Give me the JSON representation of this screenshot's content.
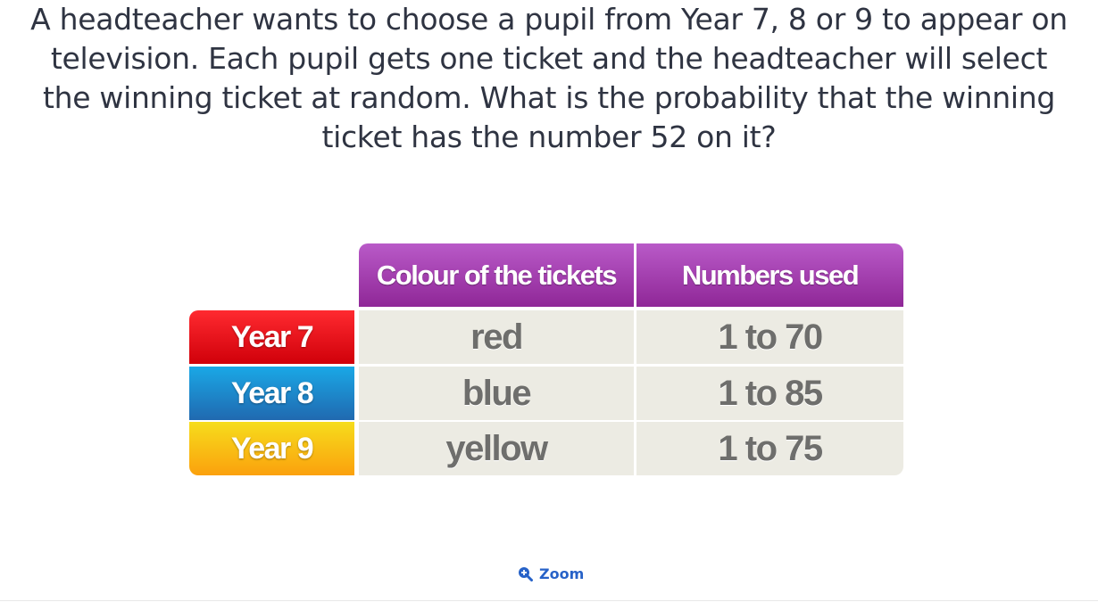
{
  "question": {
    "text": "A headteacher wants to choose a pupil from Year 7, 8 or 9 to appear on television. Each pupil gets one ticket and the headteacher will select the winning ticket at random. What is the probability that the winning ticket has the number 52 on it?"
  },
  "table": {
    "headers": [
      "Colour of the tickets",
      "Numbers used"
    ],
    "rows": [
      {
        "label": "Year 7",
        "colour": "red",
        "numbers": "1 to 70",
        "label_color": "#e8121a"
      },
      {
        "label": "Year 8",
        "colour": "blue",
        "numbers": "1 to 85",
        "label_color": "#1d8fd6"
      },
      {
        "label": "Year 9",
        "colour": "yellow",
        "numbers": "1 to 75",
        "label_color": "#f8c414"
      }
    ],
    "header_color": "#a43fb0"
  },
  "zoom": {
    "label": "Zoom",
    "icon": "zoom-in-icon",
    "color": "#2762c8"
  }
}
